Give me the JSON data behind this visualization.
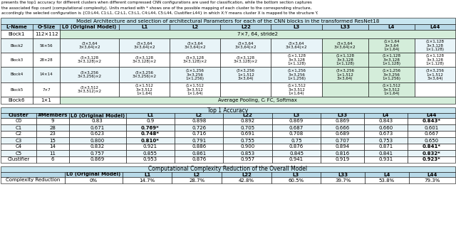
{
  "title_text_lines": [
    "presents the top1 accuracy for different clusters when different compressed CNN configurations are used for classification, while the bottom section captures",
    "the associated flop count (computational complexity). Units marked with * shows one of the possible mapping of each cluster to the corresponding structure,",
    "accordingly the selected configuration is {C0:L44, C1:L1, C2:L1, C3:L1, C4:L44, C5:L44, Clustifier:L44} in which X:Y means cluster X is mapped to the structure Y."
  ],
  "table1_title": "Model Architecture and selection of architectural Parameters for each of the CNN blocks in the transformed ResNet18",
  "table1_headers": [
    "L-Name",
    "O-Size",
    "L0 (Original Model)",
    "L1",
    "L2",
    "L22",
    "L3",
    "L33",
    "L4",
    "L44"
  ],
  "table1_rows": [
    [
      "Block1",
      "112×112",
      "7×7, 64, stride2",
      "",
      "",
      "",
      "",
      "",
      "",
      ""
    ],
    [
      "Block2",
      "56×56",
      "(3×3,64\n3×3,64)×2",
      "(3×3,64\n3×3,64)×2",
      "(3×3,64\n3×3,64)×2",
      "(3×3,64\n3×3,64)×2",
      "(3×3,64\n3×3,64)×2",
      "(3×3,64\n3×3,64)×2",
      "(1×1,64\n3×3,64\n1×1,64)",
      "(1×1,128\n3×3,128\n1×1,128)"
    ],
    [
      "Block3",
      "28×28",
      "(3×3,128\n3×3,128)×2",
      "(3×3,128\n3×3,128)×2",
      "(3×3,128\n3×3,128)×2",
      "(3×3,128\n3×3,128)×2",
      "(1×1,128\n3×3,128\n1×1,128)",
      "(1×1,128\n3×3,128\n1×1,128)",
      "(1×1,128\n3×3,128\n1×1,128)",
      "(1×1,128\n3×3,128\n1×1,128)"
    ],
    [
      "Block4",
      "14×14",
      "(3×3,256\n3×3,256)×2",
      "(3×3,256\n3×3,256)×2",
      "(1×1,256\n3×3,256\n1×1,256)",
      "(3×3,256\n1×1,512\n3×3,64)",
      "(1×1,256\n3×3,256\n1×1,256)",
      "(3×3,256\n1×1,512\n3×3,64)",
      "(1×1,256\n3×3,256\n1×1,256)",
      "(3×3,256\n1×1,512\n3×3,64)"
    ],
    [
      "Block5",
      "7×7",
      "(3×3,512\n3×3,512)×2",
      "(1×1,512\n3×3,512\n1×1,64)",
      "(1×1,512\n3×3,512\n1×1,64)",
      "",
      "(1×1,512\n3×3,512\n1×1,64)",
      "",
      "(1×1,512\n3×3,512\n1×1,64)",
      ""
    ],
    [
      "Block6",
      "1×1",
      "Average Pooling, Cᵢ FC, Softmax",
      "",
      "",
      "",
      "",
      "",
      "",
      ""
    ]
  ],
  "table1_merged_rows": [
    0,
    5
  ],
  "table1_green_cols": [
    7,
    8
  ],
  "table1_green_rows": [
    1,
    2,
    3,
    4
  ],
  "table1_h_rows": [
    12,
    20,
    20,
    22,
    20,
    10
  ],
  "table2_title": "Top 1 Accuracy",
  "table2_headers": [
    "Cluster",
    "#Members",
    "L0 (Original Model)",
    "L1",
    "L2",
    "L22",
    "L3",
    "L33",
    "L4",
    "L44"
  ],
  "table2_rows": [
    [
      "C0",
      "9",
      "0.83",
      "0.9",
      "0.898",
      "0.892",
      "0.869",
      "0.869",
      "0.843",
      "0.843*"
    ],
    [
      "C1",
      "28",
      "0.671",
      "0.769*",
      "0.726",
      "0.705",
      "0.687",
      "0.666",
      "0.660",
      "0.601"
    ],
    [
      "C2",
      "23",
      "0.623",
      "0.748*",
      "0.716",
      "0.691",
      "0.708",
      "0.689",
      "0.673",
      "0.667"
    ],
    [
      "C3",
      "15",
      "0.800",
      "0.810*",
      "0.791",
      "0.755",
      "0.75",
      "0.707",
      "0.753",
      "0.650"
    ],
    [
      "C4",
      "14",
      "0.832",
      "0.921",
      "0.886",
      "0.900",
      "0.876",
      "0.894",
      "0.871",
      "0.841*"
    ],
    [
      "C5",
      "11",
      "0.757",
      "0.855",
      "0.861",
      "0.853",
      "0.845",
      "0.816",
      "0.841",
      "0.832*"
    ],
    [
      "Clustifier",
      "6",
      "0.869",
      "0.953",
      "0.876",
      "0.957",
      "0.941",
      "0.919",
      "0.931",
      "0.923*"
    ]
  ],
  "table2_bold": [
    [
      false,
      false,
      false,
      false,
      false,
      false,
      false,
      false,
      false,
      true
    ],
    [
      false,
      false,
      false,
      true,
      false,
      false,
      false,
      false,
      false,
      false
    ],
    [
      false,
      false,
      false,
      true,
      false,
      false,
      false,
      false,
      false,
      false
    ],
    [
      false,
      false,
      false,
      true,
      false,
      false,
      false,
      false,
      false,
      false
    ],
    [
      false,
      false,
      false,
      false,
      false,
      false,
      false,
      false,
      false,
      true
    ],
    [
      false,
      false,
      false,
      false,
      false,
      false,
      false,
      false,
      false,
      true
    ],
    [
      false,
      false,
      false,
      false,
      false,
      false,
      false,
      false,
      false,
      true
    ]
  ],
  "table3_title": "Computational Complexity Reduction of the Overall Model",
  "table3_headers": [
    "",
    "L0 (Original Model)",
    "L1",
    "L2",
    "L22",
    "L3",
    "L33",
    "L4",
    "L44"
  ],
  "table3_rows": [
    [
      "Complexity Reduction",
      "0%",
      "14.7%",
      "28.7%",
      "42.8%",
      "60.5%",
      "39.7%",
      "53.8%",
      "79.3%"
    ]
  ],
  "header_bg": "#b8d9e8",
  "alt_row_bg": "#e8f4f8",
  "white_bg": "#ffffff",
  "green_bg": "#d4edda",
  "title_bg": "#c8e6f0",
  "col_widths1": [
    38,
    32,
    70,
    60,
    60,
    60,
    60,
    55,
    55,
    48
  ],
  "col_widths2": [
    45,
    42,
    72,
    62,
    62,
    62,
    62,
    55,
    55,
    61
  ],
  "col_widths3": [
    80,
    72,
    62,
    62,
    62,
    62,
    55,
    55,
    58
  ]
}
